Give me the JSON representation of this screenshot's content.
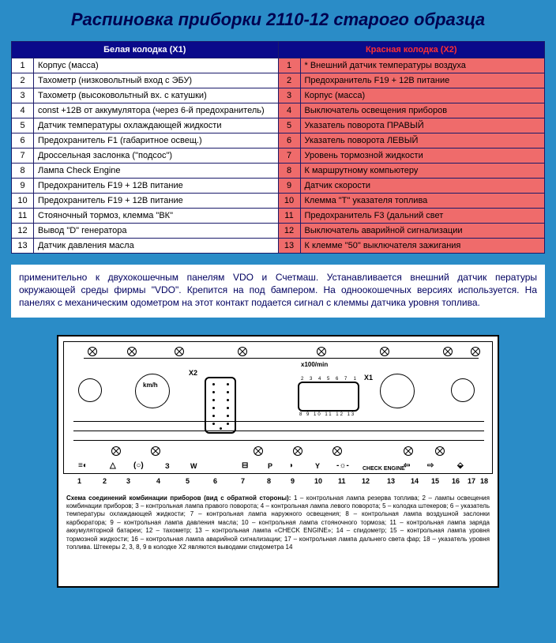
{
  "title": "Распиновка приборки 2110-12 старого образца",
  "headers": {
    "white": "Белая колодка (X1)",
    "red": "Красная колодка (X2)"
  },
  "rows": [
    {
      "wn": "1",
      "wl": "Корпус (масса)",
      "rn": "1",
      "rl": "* Внешний датчик температуры воздуха"
    },
    {
      "wn": "2",
      "wl": "Тахометр (низковольтный вход с ЭБУ)",
      "rn": "2",
      "rl": "Предохранитель F19 + 12В питание"
    },
    {
      "wn": "3",
      "wl": "Тахометр (высоковольтный вх. с катушки)",
      "rn": "3",
      "rl": "Корпус (масса)"
    },
    {
      "wn": "4",
      "wl": "const +12В от аккумулятора (через 6-й предохранитель)",
      "rn": "4",
      "rl": "Выключатель освещения приборов"
    },
    {
      "wn": "5",
      "wl": "Датчик температуры охлаждающей жидкости",
      "rn": "5",
      "rl": "Указатель поворота ПРАВЫЙ"
    },
    {
      "wn": "6",
      "wl": "Предохранитель F1 (габаритное освещ.)",
      "rn": "6",
      "rl": "Указатель поворота ЛЕВЫЙ"
    },
    {
      "wn": "7",
      "wl": "Дроссельная заслонка (\"подсос\")",
      "rn": "7",
      "rl": "Уровень тормозной жидкости"
    },
    {
      "wn": "8",
      "wl": "Лампа Check Engine",
      "rn": "8",
      "rl": "К маршрутному компьютеру"
    },
    {
      "wn": "9",
      "wl": "Предохранитель F19 + 12В питание",
      "rn": "9",
      "rl": "Датчик скорости"
    },
    {
      "wn": "10",
      "wl": "Предохранитель F19 + 12В питание",
      "rn": "10",
      "rl": "Клемма \"Т\" указателя топлива"
    },
    {
      "wn": "11",
      "wl": "Стояночный тормоз, клемма \"ВК\"",
      "rn": "11",
      "rl": "Предохранитель F3 (дальний свет"
    },
    {
      "wn": "12",
      "wl": "Вывод \"D\" генератора",
      "rn": "12",
      "rl": "Выключатель аварийной сигнализации"
    },
    {
      "wn": "13",
      "wl": "Датчик давления масла",
      "rn": "13",
      "rl": "К клемме \"50\" выключателя зажигания"
    }
  ],
  "paragraph": "применительно к двухокошечным панелям VDO и Счетмаш. Устанавливается внешний датчик пературы окружающей среды фирмы \"VDO\". Крепится на под бампером. На однооко­шечных версиях используется. На панелях с механическим одометром на этот контакт подается сигнал с клеммы датчика уровня топлива.",
  "diagram": {
    "labels": {
      "x2": "X2",
      "x1": "X1",
      "km": "km/h",
      "rpm": "x100/min",
      "check": "CHECK ENGINE"
    },
    "caption_title": "Схема соединений комбинации приборов (вид с обратной стороны):",
    "caption_body": "1 – контрольная лампа резерва топлива; 2 – лампы освещения комбинации приборов; 3 – контрольная лампа правого поворота; 4 – контрольная лампа левого поворота; 5 – колодка штекеров; 6 – указатель температуры охлаждающей жидкости; 7 – контрольная лампа наружного освещения; 8 – контрольная лампа воздушной заслонки карбюратора; 9 – контрольная лампа давления масла; 10 – контрольная лампа стояночного тормоза; 11 – контрольная лампа заряда аккумуляторной батареи; 12 – тахометр; 13 – контрольная лампа «CHECK ENGINE»; 14 – спидометр; 15 – контрольная лампа уровня тормозной жидкости; 16 – контрольная лампа аварийной сигнализации; 17 – контрольная лампа дальнего света фар; 18 – указатель уровня топлива. Штекеры 2, 3, 8, 9 в колодке X2 являются выводами спидометра 14",
    "bottom_nums": [
      "1",
      "2",
      "3",
      "4",
      "5",
      "6",
      "7",
      "8",
      "9",
      "10",
      "11",
      "12",
      "13",
      "14",
      "15",
      "16",
      "17",
      "18"
    ],
    "connector_nums": [
      "1",
      "2",
      "3",
      "4",
      "5",
      "6",
      "7",
      "8",
      "9",
      "10",
      "11",
      "12",
      "13"
    ]
  },
  "colors": {
    "page_bg": "#2a8cc7",
    "header_bg": "#0a0a8a",
    "header_text": "#ffffff",
    "red_header_text": "#ff3030",
    "white_cell": "#ffffff",
    "red_cell": "#ef6b6b",
    "border": "#1a1a6a",
    "title_color": "#000050"
  }
}
